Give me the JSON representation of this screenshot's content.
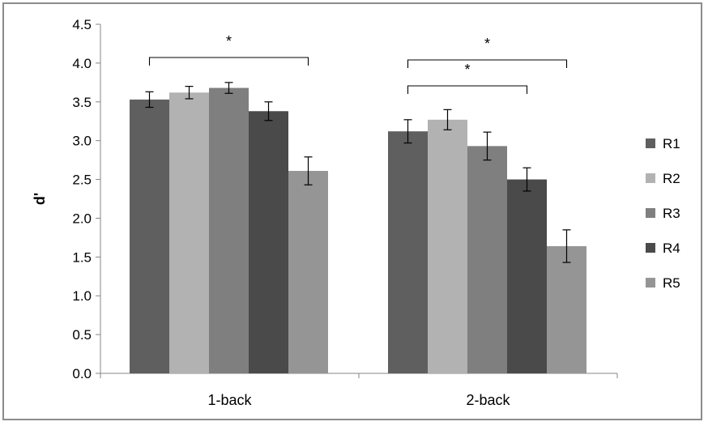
{
  "chart_data": {
    "type": "bar",
    "categories": [
      "1-back",
      "2-back"
    ],
    "ylabel": "d'",
    "xlabel": "",
    "title": "",
    "ylim": [
      0,
      4.5
    ],
    "yticks": [
      "0.0",
      "0.5",
      "1.0",
      "1.5",
      "2.0",
      "2.5",
      "3.0",
      "3.5",
      "4.0",
      "4.5"
    ],
    "grid": false,
    "legend_position": "right",
    "series": [
      {
        "name": "R1",
        "color": "#5f5f5f",
        "values": [
          3.53,
          3.12
        ],
        "errors": [
          0.1,
          0.15
        ]
      },
      {
        "name": "R2",
        "color": "#b2b2b2",
        "values": [
          3.62,
          3.27
        ],
        "errors": [
          0.08,
          0.13
        ]
      },
      {
        "name": "R3",
        "color": "#7f7f7f",
        "values": [
          3.68,
          2.93
        ],
        "errors": [
          0.07,
          0.18
        ]
      },
      {
        "name": "R4",
        "color": "#4a4a4a",
        "values": [
          3.38,
          2.5
        ],
        "errors": [
          0.12,
          0.15
        ]
      },
      {
        "name": "R5",
        "color": "#959595",
        "values": [
          2.61,
          1.64
        ],
        "errors": [
          0.18,
          0.21
        ]
      }
    ],
    "annotations": [
      {
        "label": "*",
        "category": "1-back",
        "from_series": "R1",
        "to_series": "R5"
      },
      {
        "label": "*",
        "category": "2-back",
        "from_series": "R1",
        "to_series": "R5"
      },
      {
        "label": "*",
        "category": "2-back",
        "from_series": "R1",
        "to_series": "R4"
      }
    ]
  }
}
